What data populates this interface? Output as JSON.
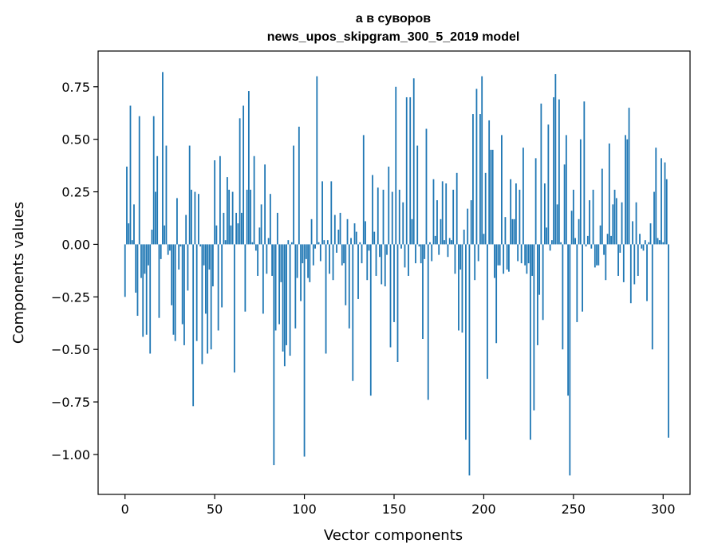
{
  "chart_data": {
    "type": "bar",
    "title": "а в суворов",
    "subtitle": "news_upos_skipgram_300_5_2019 model",
    "xlabel": "Vector components",
    "ylabel": "Components values",
    "xlim": [
      -15,
      315
    ],
    "ylim": [
      -1.19,
      0.92
    ],
    "xticks": [
      0,
      50,
      100,
      150,
      200,
      250,
      300
    ],
    "xtick_labels": [
      "0",
      "50",
      "100",
      "150",
      "200",
      "250",
      "300"
    ],
    "yticks": [
      -1.0,
      -0.75,
      -0.5,
      -0.25,
      0.0,
      0.25,
      0.5,
      0.75
    ],
    "ytick_labels": [
      "−1.00",
      "−0.75",
      "−0.50",
      "−0.25",
      "0.00",
      "0.25",
      "0.50",
      "0.75"
    ],
    "bar_color": "#1f77b4",
    "grid": false,
    "values": [
      -0.25,
      0.37,
      0.1,
      0.66,
      0.02,
      0.19,
      -0.23,
      -0.34,
      0.61,
      -0.16,
      -0.44,
      -0.14,
      -0.43,
      -0.1,
      -0.52,
      0.07,
      0.61,
      0.25,
      0.42,
      -0.35,
      -0.07,
      0.82,
      0.09,
      0.47,
      -0.05,
      -0.03,
      -0.29,
      -0.43,
      -0.46,
      0.22,
      -0.12,
      -0.01,
      -0.38,
      -0.48,
      0.14,
      -0.22,
      0.47,
      0.26,
      -0.77,
      0.25,
      -0.46,
      0.24,
      -0.01,
      -0.57,
      -0.1,
      -0.33,
      -0.52,
      -0.12,
      -0.5,
      -0.2,
      0.4,
      0.09,
      -0.41,
      0.42,
      -0.3,
      0.15,
      0.02,
      0.32,
      0.26,
      0.09,
      0.25,
      -0.61,
      0.15,
      0.1,
      0.6,
      0.15,
      0.66,
      -0.32,
      0.26,
      0.73,
      0.26,
      0.01,
      0.42,
      -0.03,
      -0.15,
      0.08,
      0.19,
      -0.33,
      0.38,
      -0.14,
      0.03,
      0.24,
      -0.15,
      -1.05,
      -0.41,
      0.15,
      -0.38,
      -0.18,
      -0.51,
      -0.58,
      -0.48,
      0.02,
      -0.53,
      0.01,
      0.47,
      -0.4,
      -0.16,
      0.56,
      -0.27,
      -0.09,
      -1.01,
      -0.07,
      -0.16,
      -0.18,
      0.12,
      -0.1,
      -0.02,
      0.8,
      0.01,
      -0.08,
      0.3,
      0.02,
      -0.52,
      0.02,
      -0.14,
      0.3,
      -0.17,
      0.14,
      -0.04,
      0.07,
      0.15,
      -0.1,
      -0.09,
      -0.29,
      0.12,
      -0.4,
      0.03,
      -0.65,
      0.1,
      0.06,
      -0.26,
      0.01,
      -0.09,
      0.52,
      0.11,
      -0.17,
      -0.03,
      -0.72,
      0.33,
      0.06,
      -0.15,
      0.27,
      -0.06,
      -0.19,
      0.26,
      -0.2,
      -0.05,
      0.37,
      -0.49,
      0.25,
      -0.37,
      0.75,
      -0.56,
      0.26,
      -0.02,
      0.2,
      -0.11,
      0.7,
      -0.15,
      0.7,
      0.12,
      0.79,
      -0.09,
      0.47,
      -0.01,
      -0.09,
      -0.45,
      -0.07,
      0.55,
      -0.74,
      0.01,
      -0.08,
      0.31,
      0.04,
      0.21,
      -0.05,
      0.12,
      0.3,
      0.02,
      0.29,
      -0.06,
      0.03,
      0.02,
      0.26,
      -0.14,
      0.34,
      -0.41,
      -0.12,
      -0.42,
      0.07,
      -0.93,
      0.17,
      -1.1,
      0.21,
      0.62,
      -0.17,
      0.74,
      -0.08,
      0.62,
      0.8,
      0.05,
      0.34,
      -0.64,
      0.59,
      0.45,
      0.45,
      -0.16,
      -0.47,
      -0.1,
      -0.1,
      0.52,
      -0.14,
      0.13,
      -0.12,
      -0.13,
      0.31,
      0.12,
      0.12,
      0.29,
      -0.08,
      0.26,
      -0.09,
      0.46,
      -0.1,
      -0.14,
      -0.09,
      -0.93,
      -0.15,
      -0.79,
      0.41,
      -0.48,
      -0.24,
      0.67,
      -0.36,
      0.29,
      0.08,
      0.57,
      -0.03,
      0.02,
      0.7,
      0.81,
      0.19,
      0.69,
      0.01,
      -0.5,
      0.38,
      0.52,
      -0.72,
      -1.1,
      0.16,
      0.26,
      0.03,
      -0.37,
      0.12,
      0.5,
      -0.32,
      0.68,
      -0.01,
      0.04,
      0.21,
      -0.02,
      0.26,
      -0.11,
      -0.1,
      -0.1,
      0.09,
      0.36,
      -0.05,
      -0.17,
      0.05,
      0.48,
      0.04,
      0.19,
      0.26,
      0.22,
      -0.15,
      -0.04,
      0.2,
      -0.18,
      0.52,
      0.5,
      0.65,
      -0.28,
      0.11,
      -0.19,
      0.2,
      -0.15,
      0.05,
      -0.02,
      -0.03,
      0.02,
      -0.27,
      0.01,
      0.1,
      -0.5,
      0.25,
      0.46,
      0.03,
      0.02,
      0.41,
      0.01,
      0.39,
      0.31,
      -0.92
    ]
  }
}
